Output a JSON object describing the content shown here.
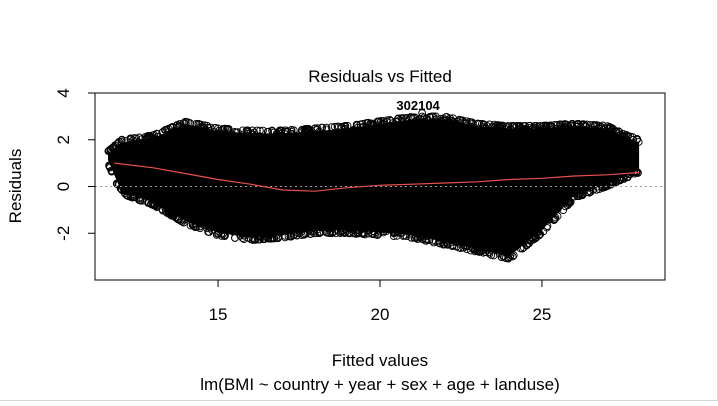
{
  "chart_data": {
    "type": "scatter",
    "title": "Residuals vs Fitted",
    "xlabel": "Fitted values",
    "subtitle": "lm(BMI ~ country + year + sex + age + landuse)",
    "ylabel": "Residuals",
    "xlim": [
      11.2,
      28.8
    ],
    "ylim": [
      -4.0,
      4.0
    ],
    "x_ticks": [
      15,
      20,
      25
    ],
    "y_ticks": [
      -2,
      0,
      2,
      4
    ],
    "x_tick_labels": [
      "15",
      "20",
      "25"
    ],
    "y_tick_labels": [
      "-2",
      "0",
      "2",
      "4"
    ],
    "reference_line_y": 0,
    "point_cloud": {
      "upper_envelope": [
        [
          11.6,
          1.5
        ],
        [
          12,
          2.0
        ],
        [
          13,
          2.2
        ],
        [
          14,
          2.8
        ],
        [
          15,
          2.5
        ],
        [
          16,
          2.4
        ],
        [
          17,
          2.4
        ],
        [
          18,
          2.5
        ],
        [
          19,
          2.6
        ],
        [
          20,
          2.8
        ],
        [
          21,
          3.0
        ],
        [
          22,
          3.0
        ],
        [
          23,
          2.7
        ],
        [
          24,
          2.6
        ],
        [
          25,
          2.6
        ],
        [
          26,
          2.7
        ],
        [
          27,
          2.6
        ],
        [
          28,
          2.0
        ]
      ],
      "lower_envelope": [
        [
          11.6,
          1.0
        ],
        [
          12,
          -0.3
        ],
        [
          13,
          -0.8
        ],
        [
          14,
          -1.6
        ],
        [
          15,
          -2.1
        ],
        [
          16,
          -2.3
        ],
        [
          17,
          -2.2
        ],
        [
          18,
          -2.0
        ],
        [
          19,
          -2.0
        ],
        [
          20,
          -2.1
        ],
        [
          21,
          -2.2
        ],
        [
          22,
          -2.5
        ],
        [
          23,
          -2.8
        ],
        [
          24,
          -3.1
        ],
        [
          25,
          -2.0
        ],
        [
          26,
          -0.5
        ],
        [
          27,
          0.0
        ],
        [
          28,
          0.6
        ]
      ]
    },
    "smoother": {
      "color": "#e8504f",
      "points": [
        [
          11.8,
          1.0
        ],
        [
          13,
          0.8
        ],
        [
          14,
          0.55
        ],
        [
          15,
          0.3
        ],
        [
          16,
          0.1
        ],
        [
          17,
          -0.15
        ],
        [
          18,
          -0.2
        ],
        [
          19,
          -0.05
        ],
        [
          20,
          0.05
        ],
        [
          21,
          0.1
        ],
        [
          22,
          0.15
        ],
        [
          23,
          0.2
        ],
        [
          24,
          0.3
        ],
        [
          25,
          0.35
        ],
        [
          26,
          0.45
        ],
        [
          27,
          0.5
        ],
        [
          28,
          0.6
        ]
      ]
    },
    "labeled_points": [
      {
        "label": "302104",
        "x": 21.3,
        "y": 3.4
      }
    ]
  }
}
